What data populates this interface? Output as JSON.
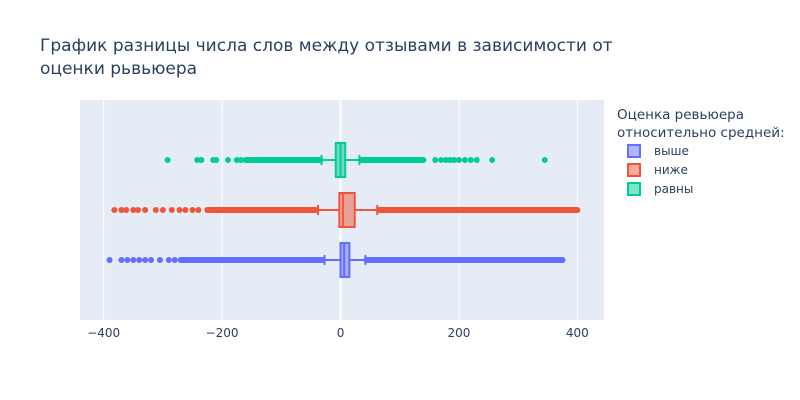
{
  "chart_data": {
    "type": "box",
    "orientation": "horizontal",
    "title_lines": [
      "График разницы числа слов между отзывами в зависимости от",
      "оценки рьвьюера"
    ],
    "xlabel": "",
    "ylabel": "",
    "xlim": [
      -440,
      445
    ],
    "x_ticks": [
      -400,
      -200,
      0,
      200,
      400
    ],
    "x_tick_labels": [
      "−400",
      "−200",
      "0",
      "200",
      "400"
    ],
    "grid": true,
    "legend": {
      "title_lines": [
        "Оценка ревьюера",
        "относительно средней:"
      ],
      "placement": "right"
    },
    "series": [
      {
        "name": "выше",
        "color": "#636efa",
        "q1": 0,
        "median": 6,
        "q3": 15,
        "whisker_low": -27,
        "whisker_high": 42,
        "outliers_dense_low": [
          -270,
          -30
        ],
        "outliers_dense_high": [
          44,
          375
        ],
        "outliers_sparse": [
          -390,
          -370,
          -360,
          -350,
          -340,
          -330,
          -320,
          -305,
          -290,
          -280
        ]
      },
      {
        "name": "ниже",
        "color": "#ef553b",
        "q1": -2,
        "median": 4,
        "q3": 24,
        "whisker_low": -38,
        "whisker_high": 62,
        "outliers_dense_low": [
          -225,
          -42
        ],
        "outliers_dense_high": [
          66,
          400
        ],
        "outliers_sparse": [
          -382,
          -370,
          -362,
          -350,
          -342,
          -330,
          -312,
          -300,
          -285,
          -272,
          -262,
          -250,
          -240
        ]
      },
      {
        "name": "равны",
        "color": "#00cc96",
        "q1": -8,
        "median": 0,
        "q3": 8,
        "whisker_low": -32,
        "whisker_high": 32,
        "outliers_dense_low": [
          -160,
          -34
        ],
        "outliers_dense_high": [
          34,
          140
        ],
        "outliers_sparse": [
          -292,
          -242,
          -235,
          -215,
          -210,
          -190,
          -175,
          -168,
          160,
          170,
          178,
          185,
          192,
          200,
          210,
          220,
          230,
          256,
          345
        ]
      }
    ]
  }
}
